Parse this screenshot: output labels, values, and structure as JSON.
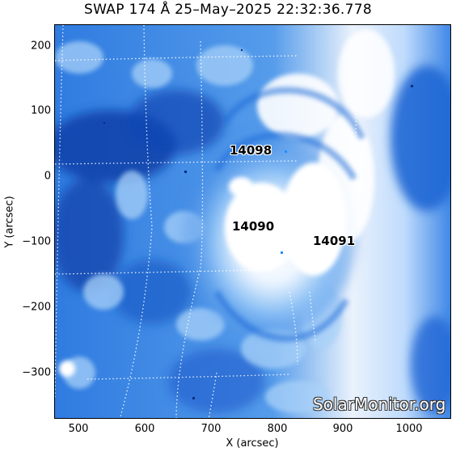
{
  "title": "SWAP 174 Å 25–May–2025 22:32:36.778",
  "axes": {
    "xlabel": "X (arcsec)",
    "ylabel": "Y (arcsec)",
    "xticks": [
      "500",
      "600",
      "700",
      "800",
      "900",
      "1000"
    ],
    "yticks": [
      "200",
      "100",
      "0",
      "−100",
      "−200",
      "−300"
    ]
  },
  "regions": [
    {
      "id": "14098"
    },
    {
      "id": "14090"
    },
    {
      "id": "14091"
    }
  ],
  "watermark": "SolarMonitor.org",
  "colors": {
    "dark_blue": "#0a3fa8",
    "mid_blue": "#2f7be0",
    "light_blue": "#8fc2f5",
    "bright": "#ffffff"
  }
}
